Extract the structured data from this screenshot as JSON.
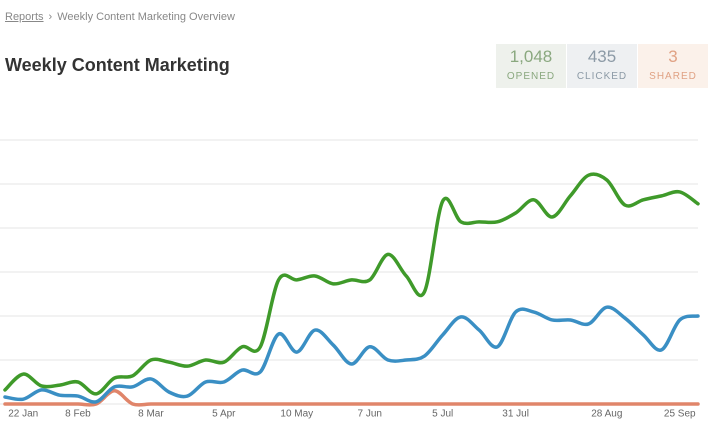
{
  "breadcrumb": {
    "link": "Reports",
    "separator": "›",
    "current": "Weekly Content Marketing Overview"
  },
  "header": {
    "title": "Weekly Content Marketing"
  },
  "stats": [
    {
      "value": "1,048",
      "label": "OPENED"
    },
    {
      "value": "435",
      "label": "CLICKED"
    },
    {
      "value": "3",
      "label": "SHARED"
    }
  ],
  "chart_data": {
    "type": "line",
    "categories": [
      null,
      "22 Jan",
      null,
      null,
      "8 Feb",
      null,
      null,
      null,
      "8 Mar",
      null,
      null,
      null,
      "5 Apr",
      null,
      null,
      null,
      "10 May",
      null,
      null,
      null,
      "7 Jun",
      null,
      null,
      null,
      "5 Jul",
      null,
      null,
      null,
      "31 Jul",
      null,
      null,
      null,
      null,
      "28 Aug",
      null,
      null,
      null,
      "25 Sep",
      null
    ],
    "series": [
      {
        "color": "#3f9a2a",
        "values": [
          3.2,
          6.8,
          4.1,
          4.3,
          5,
          2.3,
          5.9,
          6.4,
          10,
          9.5,
          8.6,
          10,
          9.5,
          13,
          13,
          28.2,
          28.2,
          29.1,
          27.3,
          28.2,
          28.2,
          34,
          29.1,
          25.5,
          46.1,
          41.4,
          41.4,
          41.4,
          43.4,
          46.4,
          42.5,
          47.3,
          52,
          50.9,
          45.2,
          46.4,
          47.3,
          48.2,
          45.5
        ]
      },
      {
        "color": "#3a8fc4",
        "values": [
          1.6,
          1.1,
          3.2,
          2,
          1.8,
          0.5,
          3.9,
          3.9,
          5.7,
          2.7,
          1.8,
          5,
          5,
          7.7,
          7.3,
          15.9,
          11.8,
          16.8,
          13.4,
          9.1,
          13,
          10,
          10,
          10.9,
          15.7,
          19.8,
          16.8,
          13,
          20.9,
          20.9,
          19.1,
          19.1,
          18.2,
          22,
          19.5,
          15.7,
          12.3,
          19.1,
          20
        ]
      },
      {
        "color": "#e0856a",
        "values": [
          0,
          0,
          0,
          0,
          0,
          0,
          3,
          0,
          0,
          0,
          0,
          0,
          0,
          0,
          0,
          0,
          0,
          0,
          0,
          0,
          0,
          0,
          0,
          0,
          0,
          0,
          0,
          0,
          0,
          0,
          0,
          0,
          0,
          0,
          0,
          0,
          0,
          0,
          0
        ]
      }
    ],
    "ylim": [
      0,
      60
    ],
    "yticks": [
      0,
      10,
      20,
      30,
      40,
      50,
      60
    ],
    "grid": true
  }
}
